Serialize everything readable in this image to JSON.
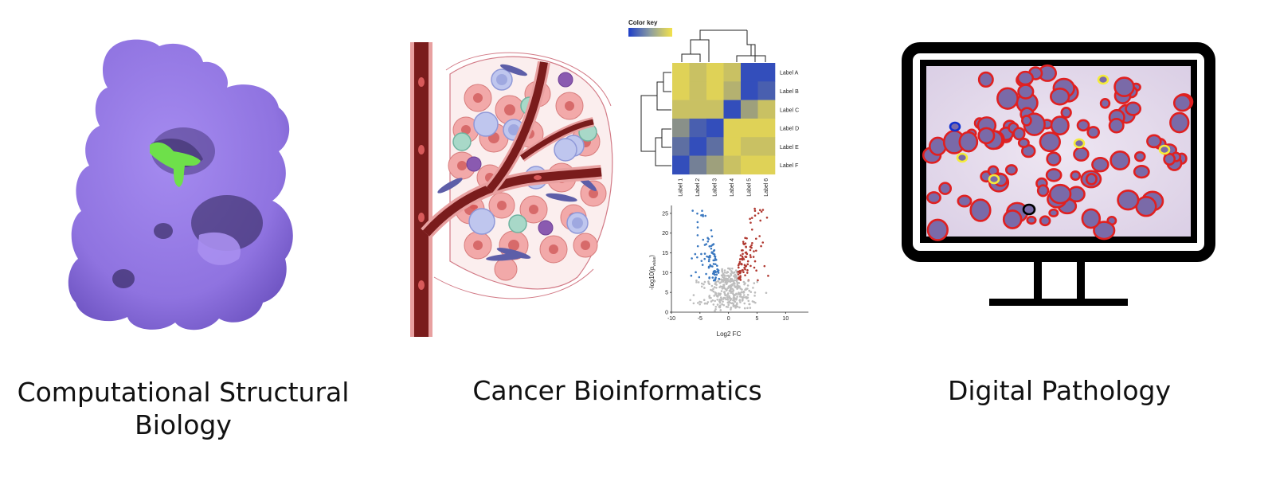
{
  "captions": {
    "structural": {
      "line1": "Computational Structural",
      "line2": "Biology"
    },
    "bioinformatics": "Cancer Bioinformatics",
    "pathology": "Digital Pathology"
  },
  "heatmap": {
    "color_key_label": "Color key",
    "row_labels": [
      "Label A",
      "Label B",
      "Label C",
      "Label D",
      "Label E",
      "Label F"
    ],
    "col_labels": [
      "Label 1",
      "Label 2",
      "Label 3",
      "Label 4",
      "Label 5",
      "Label 6"
    ],
    "values": [
      [
        0.9,
        0.8,
        0.9,
        0.8,
        0.1,
        0.1
      ],
      [
        0.9,
        0.8,
        0.9,
        0.7,
        0.1,
        0.2
      ],
      [
        0.8,
        0.8,
        0.8,
        0.1,
        0.6,
        0.8
      ],
      [
        0.5,
        0.2,
        0.1,
        0.9,
        0.9,
        0.9
      ],
      [
        0.3,
        0.1,
        0.3,
        0.9,
        0.8,
        0.8
      ],
      [
        0.1,
        0.4,
        0.6,
        0.8,
        0.9,
        0.9
      ]
    ],
    "low_color": "#1e3ec8",
    "high_color": "#f4e24a"
  },
  "chart_data": {
    "type": "scatter",
    "title": "",
    "xlabel": "Log2 FC",
    "ylabel": "-log10(p",
    "ylabel_sub": "value",
    "ylabel_close": ")",
    "xlim": [
      -10,
      14
    ],
    "ylim": [
      0,
      27
    ],
    "xticks": [
      -10,
      -5,
      0,
      5,
      10
    ],
    "yticks": [
      0,
      5,
      10,
      15,
      20,
      25
    ],
    "colors": {
      "down": "#3a78c0",
      "up": "#b03830",
      "ns": "#bdbdbd"
    }
  },
  "colors": {
    "protein": "#9b7fe8",
    "ligand": "#6ee04a",
    "vessel": "#7a1c1c",
    "monitor": "#000000",
    "contour": "#e02020"
  }
}
